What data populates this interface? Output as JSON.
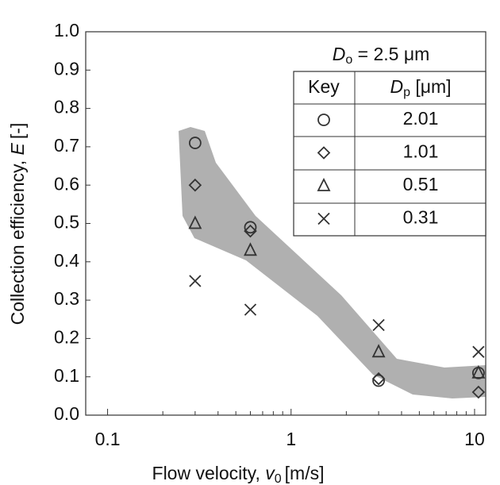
{
  "chart_data": {
    "type": "scatter",
    "x_label": {
      "text": "Flow velocity, ",
      "symbol": "v",
      "subscript": "0",
      "unit": "[m/s]"
    },
    "y_label": {
      "text": "Collection efficiency, ",
      "symbol": "E",
      "unit": "[-]"
    },
    "xscale": "log",
    "xlim": [
      0.076,
      11.5
    ],
    "xticks": [
      0.1,
      1,
      10
    ],
    "xminorticks": [
      0.2,
      0.3,
      0.4,
      0.5,
      0.6,
      0.7,
      0.8,
      0.9,
      2,
      3,
      4,
      5,
      6,
      7,
      8,
      9
    ],
    "ylim": [
      0,
      1
    ],
    "yticks": [
      {
        "value": 0,
        "label": "0.0"
      },
      0.1,
      0.2,
      0.3,
      0.4,
      0.5,
      0.6,
      0.7,
      0.8,
      0.9,
      {
        "value": 1,
        "label": "1.0"
      }
    ],
    "legend": {
      "title": {
        "symbol": "D",
        "subscript": "o",
        "text": " = 2.5 μm"
      },
      "key_header": "Key",
      "value_header": {
        "symbol": "D",
        "subscript": "p",
        "unit": " [μm]"
      },
      "corner": "upper right"
    },
    "series": [
      {
        "name": "2.01",
        "marker": "circle",
        "color": "#333333",
        "x": [
          0.3,
          0.6,
          3,
          10.5
        ],
        "values": [
          0.71,
          0.49,
          0.09,
          0.11
        ]
      },
      {
        "name": "1.01",
        "marker": "diamond",
        "color": "#333333",
        "x": [
          0.3,
          0.6,
          3,
          10.5
        ],
        "values": [
          0.6,
          0.48,
          0.095,
          0.06
        ]
      },
      {
        "name": "0.51",
        "marker": "triangle",
        "color": "#333333",
        "x": [
          0.3,
          0.6,
          3,
          10.5
        ],
        "values": [
          0.5,
          0.43,
          0.165,
          0.11
        ]
      },
      {
        "name": "0.31",
        "marker": "cross",
        "color": "#333333",
        "x": [
          0.3,
          0.6,
          3,
          10.5
        ],
        "values": [
          0.35,
          0.275,
          0.235,
          0.165
        ]
      }
    ]
  }
}
